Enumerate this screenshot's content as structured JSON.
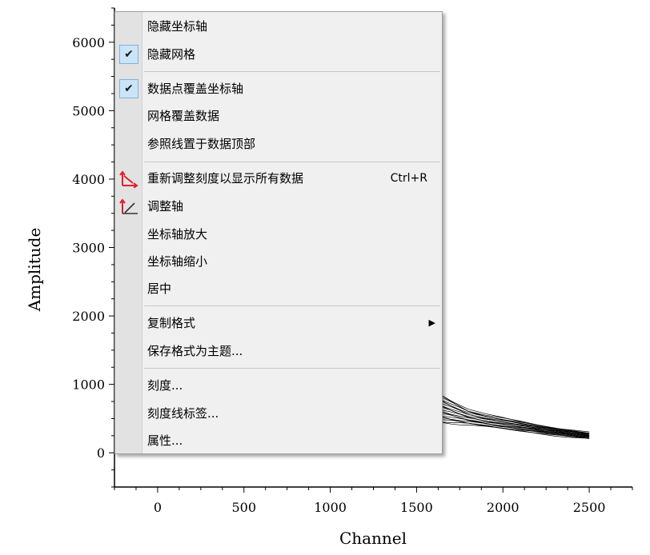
{
  "chart_data": {
    "type": "line",
    "xlabel": "Channel",
    "ylabel": "Amplitude",
    "xlim": [
      -250,
      2750
    ],
    "ylim": [
      -500,
      6500
    ],
    "x_ticks": [
      0,
      500,
      1000,
      1500,
      2000,
      2500
    ],
    "y_ticks": [
      0,
      1000,
      2000,
      3000,
      4000,
      5000,
      6000
    ],
    "grid": false,
    "series_note_count": 20,
    "decay": {
      "x": [
        1500,
        1550,
        1600,
        1650,
        1700,
        1750,
        1800,
        1900,
        2000,
        2100,
        2200,
        2300,
        2400,
        2500
      ],
      "y_center": [
        1300,
        900,
        700,
        640,
        600,
        560,
        520,
        470,
        430,
        390,
        350,
        310,
        280,
        250
      ],
      "spread": [
        500,
        380,
        260,
        200,
        170,
        140,
        110,
        90,
        80,
        70,
        60,
        55,
        50,
        45
      ]
    }
  },
  "menu": {
    "items": [
      {
        "label": "隐藏坐标轴",
        "checked": false
      },
      {
        "label": "隐藏网格",
        "checked": true
      },
      {
        "label": "数据点覆盖坐标轴",
        "checked": true
      },
      {
        "label": "网格覆盖数据",
        "checked": false
      },
      {
        "label": "参照线置于数据顶部",
        "checked": false
      },
      {
        "label": "重新调整刻度以显示所有数据",
        "shortcut": "Ctrl+R",
        "icon": "rescale-axes-icon"
      },
      {
        "label": "调整轴",
        "icon": "adjust-axis-icon"
      },
      {
        "label": "坐标轴放大"
      },
      {
        "label": "坐标轴缩小"
      },
      {
        "label": "居中"
      },
      {
        "label": "复制格式",
        "submenu": true
      },
      {
        "label": "保存格式为主题..."
      },
      {
        "label": "刻度..."
      },
      {
        "label": "刻度线标签..."
      },
      {
        "label": "属性..."
      }
    ],
    "check_glyph": "✔",
    "submenu_glyph": "▶"
  }
}
